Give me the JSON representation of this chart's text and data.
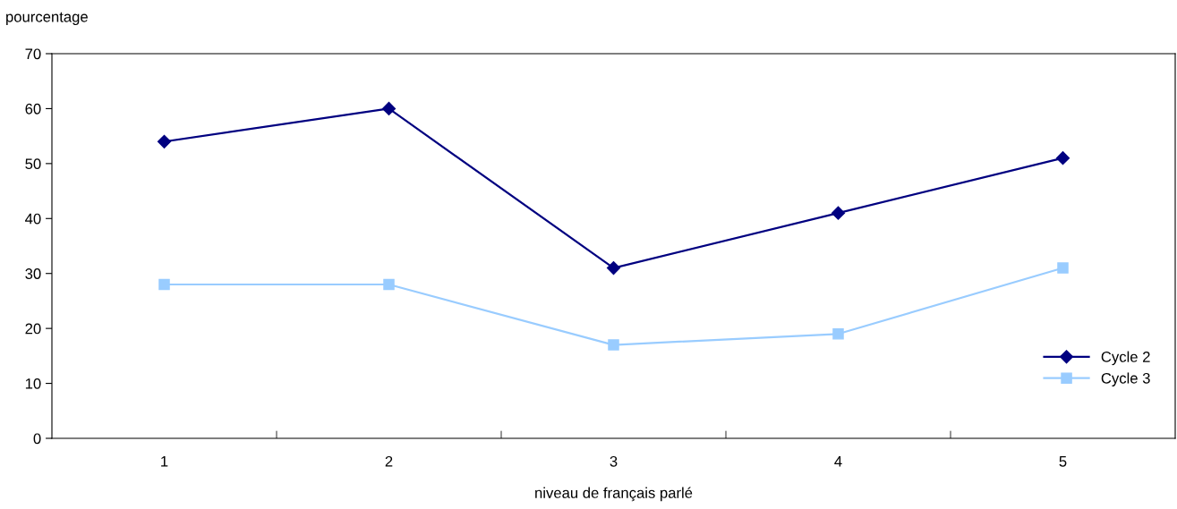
{
  "chart_data": {
    "type": "line",
    "xlabel": "niveau de français parlé",
    "ylabel": "pourcentage",
    "categories": [
      "1",
      "2",
      "3",
      "4",
      "5"
    ],
    "series": [
      {
        "name": "Cycle 2",
        "color": "#000080",
        "marker": "diamond",
        "values": [
          54,
          60,
          31,
          41,
          51
        ]
      },
      {
        "name": "Cycle 3",
        "color": "#99ccff",
        "marker": "square",
        "values": [
          28,
          28,
          17,
          19,
          31
        ]
      }
    ],
    "ylim": [
      0,
      70
    ],
    "yticks": [
      0,
      10,
      20,
      30,
      40,
      50,
      60,
      70
    ],
    "grid": false,
    "legend": "bottom right",
    "line_style": "solid"
  }
}
